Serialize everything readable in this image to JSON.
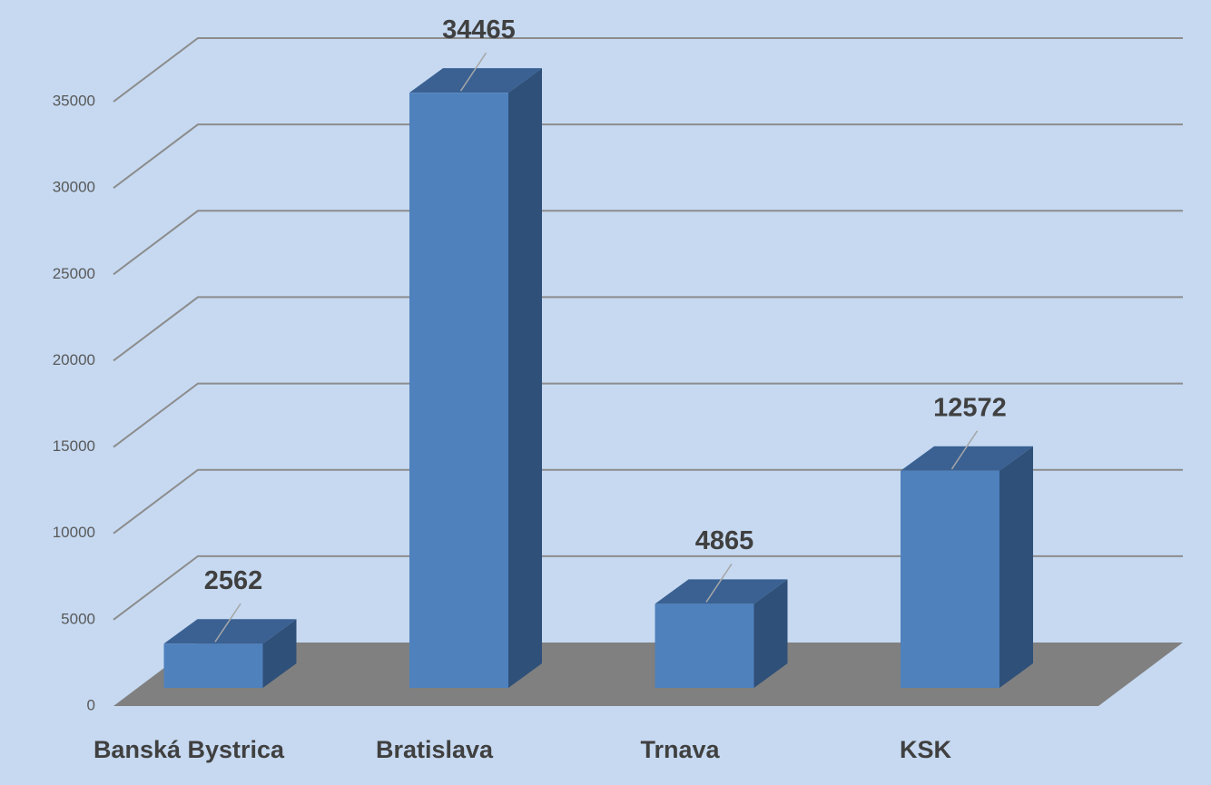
{
  "chart_data": {
    "type": "bar3d",
    "categories": [
      "Banská Bystrica",
      "Bratislava",
      "Trnava",
      "KSK"
    ],
    "values": [
      2562,
      34465,
      4865,
      12572
    ],
    "color": "#4f81bd",
    "ylim": [
      0,
      35000
    ],
    "yticks": [
      0,
      5000,
      10000,
      15000,
      20000,
      25000,
      30000,
      35000
    ],
    "grid": true
  }
}
